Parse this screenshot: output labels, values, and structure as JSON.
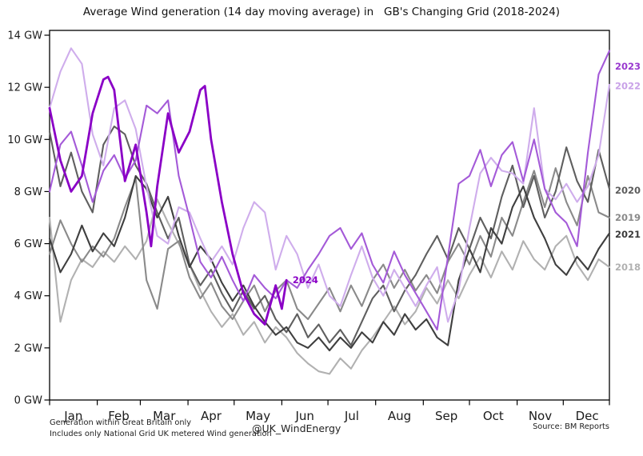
{
  "title": "Average Wind generation (14 day moving average) in   GB's Changing Grid (2018-2024)",
  "footer": {
    "note_line1": "Generation within Great Britain only",
    "note_line2": "Includes only National Grid UK metered Wind generation",
    "handle": "@UK_WindEnergy",
    "source": "Source: BM Reports"
  },
  "chart_data": {
    "type": "line",
    "x_unit": "day_of_year",
    "xlim": [
      0,
      365
    ],
    "ylim": [
      0,
      14.2
    ],
    "grid": false,
    "legend_position": "right-margin-year-labels",
    "ylabel_format": "N GW",
    "y_ticks": [
      {
        "gw": 0,
        "label": "0 GW"
      },
      {
        "gw": 2,
        "label": "2 GW"
      },
      {
        "gw": 4,
        "label": "4 GW"
      },
      {
        "gw": 6,
        "label": "6 GW"
      },
      {
        "gw": 8,
        "label": "8 GW"
      },
      {
        "gw": 10,
        "label": "10 GW"
      },
      {
        "gw": 12,
        "label": "12 GW"
      },
      {
        "gw": 14,
        "label": "14 GW"
      }
    ],
    "x_ticks": {
      "boundaries_day": [
        0,
        31,
        59,
        90,
        120,
        151,
        181,
        212,
        243,
        273,
        304,
        334,
        364
      ],
      "labels": [
        {
          "name": "Jan",
          "day": 15.5
        },
        {
          "name": "Feb",
          "day": 45
        },
        {
          "name": "Mar",
          "day": 74.5
        },
        {
          "name": "Apr",
          "day": 105
        },
        {
          "name": "May",
          "day": 135.5
        },
        {
          "name": "Jun",
          "day": 166
        },
        {
          "name": "Jul",
          "day": 196.5
        },
        {
          "name": "Aug",
          "day": 227.5
        },
        {
          "name": "Sep",
          "day": 258
        },
        {
          "name": "Oct",
          "day": 288.5
        },
        {
          "name": "Nov",
          "day": 319
        },
        {
          "name": "Dec",
          "day": 349.5
        }
      ]
    },
    "series": [
      {
        "name": "2018",
        "color": "#b1b1b1",
        "label_color": "#b1b1b1",
        "width": 2.1,
        "right_label_gw": 5.1,
        "day_step": 7,
        "values": [
          7.0,
          3.0,
          4.6,
          5.4,
          5.1,
          5.7,
          5.3,
          5.9,
          5.4,
          6.1,
          7.7,
          6.8,
          6.0,
          5.2,
          4.2,
          3.4,
          2.8,
          3.3,
          2.5,
          3.0,
          2.2,
          2.8,
          2.4,
          1.8,
          1.4,
          1.1,
          1.0,
          1.6,
          1.2,
          1.9,
          2.4,
          3.0,
          3.6,
          2.9,
          3.4,
          4.3,
          3.7,
          4.6,
          3.9,
          4.8,
          5.5,
          4.7,
          5.7,
          5.0,
          6.1,
          5.4,
          5.0,
          5.9,
          6.3,
          5.2,
          4.6,
          5.4,
          5.1
        ]
      },
      {
        "name": "2019",
        "color": "#8a8a8a",
        "label_color": "#8a8a8a",
        "width": 2.1,
        "right_label_gw": 7.0,
        "day_step": 7,
        "values": [
          5.6,
          6.9,
          6.0,
          5.3,
          5.9,
          5.5,
          6.2,
          7.4,
          8.5,
          4.6,
          3.5,
          5.8,
          6.1,
          4.7,
          3.9,
          4.5,
          3.6,
          3.1,
          3.8,
          4.4,
          3.4,
          4.2,
          4.6,
          3.5,
          3.1,
          3.7,
          4.3,
          3.4,
          4.4,
          3.6,
          4.6,
          5.2,
          4.3,
          5.0,
          4.2,
          4.8,
          4.1,
          5.3,
          6.0,
          5.2,
          6.3,
          5.5,
          7.0,
          6.3,
          7.6,
          8.8,
          7.4,
          8.9,
          7.6,
          6.7,
          8.6,
          7.2,
          7.0
        ]
      },
      {
        "name": "2020",
        "color": "#5f5f5f",
        "label_color": "#5c5c5c",
        "width": 2.1,
        "right_label_gw": 8.05,
        "day_step": 7,
        "values": [
          10.3,
          8.2,
          9.5,
          8.0,
          7.2,
          9.8,
          10.5,
          10.2,
          9.0,
          8.3,
          7.2,
          6.2,
          7.0,
          5.2,
          4.4,
          5.0,
          4.1,
          3.4,
          4.2,
          3.5,
          4.0,
          3.1,
          2.6,
          3.3,
          2.4,
          2.9,
          2.2,
          2.7,
          2.1,
          3.0,
          3.9,
          4.4,
          3.4,
          4.2,
          4.8,
          5.6,
          6.3,
          5.4,
          6.6,
          5.8,
          7.0,
          6.2,
          7.8,
          9.0,
          7.4,
          8.6,
          7.0,
          8.0,
          9.7,
          8.4,
          7.6,
          9.6,
          8.1
        ]
      },
      {
        "name": "2021",
        "color": "#3f3f3f",
        "label_color": "#3a3a3a",
        "width": 2.1,
        "right_label_gw": 6.35,
        "day_step": 7,
        "values": [
          6.2,
          4.9,
          5.6,
          6.7,
          5.7,
          6.4,
          5.9,
          7.0,
          8.6,
          8.1,
          7.0,
          7.8,
          6.3,
          5.1,
          5.9,
          5.4,
          4.5,
          3.8,
          4.4,
          3.6,
          3.0,
          2.5,
          2.8,
          2.2,
          2.0,
          2.4,
          1.9,
          2.4,
          2.0,
          2.6,
          2.2,
          3.0,
          2.5,
          3.3,
          2.7,
          3.1,
          2.4,
          2.1,
          4.6,
          5.8,
          4.9,
          6.6,
          6.0,
          7.4,
          8.2,
          7.0,
          6.2,
          5.2,
          4.8,
          5.5,
          5.0,
          5.8,
          6.4
        ]
      },
      {
        "name": "2022",
        "color": "#cfadec",
        "label_color": "#c9a2e8",
        "width": 2.1,
        "right_label_gw": 12.05,
        "day_step": 7,
        "values": [
          11.2,
          12.6,
          13.5,
          12.9,
          10.2,
          9.0,
          11.2,
          11.5,
          10.4,
          8.2,
          6.3,
          6.0,
          7.4,
          7.2,
          6.2,
          5.3,
          5.9,
          5.2,
          6.6,
          7.6,
          7.2,
          5.0,
          6.3,
          5.6,
          4.3,
          5.2,
          4.0,
          3.6,
          4.8,
          5.9,
          4.7,
          4.0,
          5.0,
          4.3,
          3.6,
          4.4,
          5.1,
          3.0,
          4.2,
          6.6,
          8.7,
          9.3,
          8.8,
          8.7,
          8.3,
          11.2,
          8.1,
          7.7,
          8.3,
          7.6,
          8.2,
          9.4,
          12.1
        ]
      },
      {
        "name": "2023",
        "color": "#a45ad8",
        "label_color": "#9939cf",
        "width": 2.1,
        "right_label_gw": 12.8,
        "day_step": 7,
        "values": [
          8.0,
          9.8,
          10.3,
          9.0,
          7.6,
          8.8,
          9.4,
          8.5,
          9.2,
          11.3,
          11.0,
          11.5,
          8.6,
          7.0,
          5.3,
          4.7,
          5.5,
          4.6,
          3.8,
          4.8,
          4.3,
          3.9,
          4.6,
          4.3,
          5.0,
          5.6,
          6.3,
          6.6,
          5.8,
          6.4,
          5.2,
          4.5,
          5.7,
          4.8,
          4.1,
          3.4,
          2.7,
          5.5,
          8.3,
          8.6,
          9.6,
          8.2,
          9.4,
          9.9,
          8.4,
          10.0,
          8.1,
          7.2,
          6.8,
          5.9,
          9.5,
          12.5,
          13.4
        ]
      },
      {
        "name": "2024",
        "color": "#8a00c6",
        "label_color": "#8a00c6",
        "width": 2.8,
        "right_label_gw": null,
        "days": [
          0,
          7,
          14,
          21,
          28,
          35,
          38,
          42,
          49,
          56,
          63,
          66,
          70,
          77,
          84,
          91,
          98,
          101,
          105,
          112,
          119,
          126,
          133,
          140,
          147,
          151,
          154
        ],
        "values": [
          11.2,
          9.2,
          8.0,
          8.6,
          11.0,
          12.3,
          12.4,
          11.9,
          8.4,
          9.8,
          7.2,
          5.9,
          8.2,
          11.0,
          9.5,
          10.3,
          11.9,
          12.05,
          10.0,
          7.6,
          5.6,
          4.1,
          3.3,
          2.9,
          4.4,
          3.5,
          4.6
        ]
      }
    ],
    "inline_label": {
      "text": "2024",
      "day": 158,
      "gw": 4.6,
      "color": "#8a00c6"
    }
  }
}
